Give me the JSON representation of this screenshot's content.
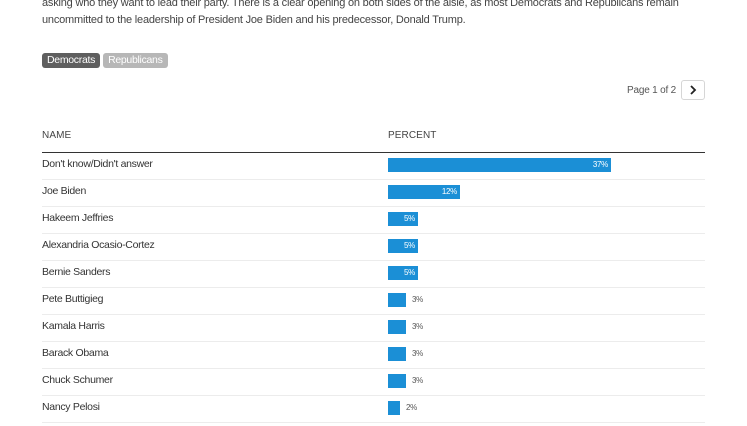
{
  "intro": {
    "line1": "asking who they want to lead their party. There is a clear opening on both sides of the aisle, as most Democrats and Republicans remain",
    "line2": "uncommitted to the leadership of President Joe Biden and his predecessor, Donald Trump."
  },
  "filters": {
    "democrats": "Democrats",
    "republicans": "Republicans"
  },
  "pager": {
    "label": "Page 1 of 2",
    "next_icon": "chevron-right-icon"
  },
  "colors": {
    "bar": "#1b8fd6",
    "active_filter": "#5f5f5f",
    "inactive_filter": "#b7b7b7"
  },
  "chart_data": {
    "type": "bar",
    "orientation": "horizontal",
    "xlabel": "PERCENT",
    "ylabel": "NAME",
    "xlim": [
      0,
      37
    ],
    "categories": [
      "Don't know/Didn't answer",
      "Joe Biden",
      "Hakeem Jeffries",
      "Alexandria Ocasio-Cortez",
      "Bernie Sanders",
      "Pete Buttigieg",
      "Kamala Harris",
      "Barack Obama",
      "Chuck Schumer",
      "Nancy Pelosi"
    ],
    "values": [
      37,
      12,
      5,
      5,
      5,
      3,
      3,
      3,
      3,
      2
    ],
    "value_labels": [
      "37%",
      "12%",
      "5%",
      "5%",
      "5%",
      "3%",
      "3%",
      "3%",
      "3%",
      "2%"
    ]
  }
}
